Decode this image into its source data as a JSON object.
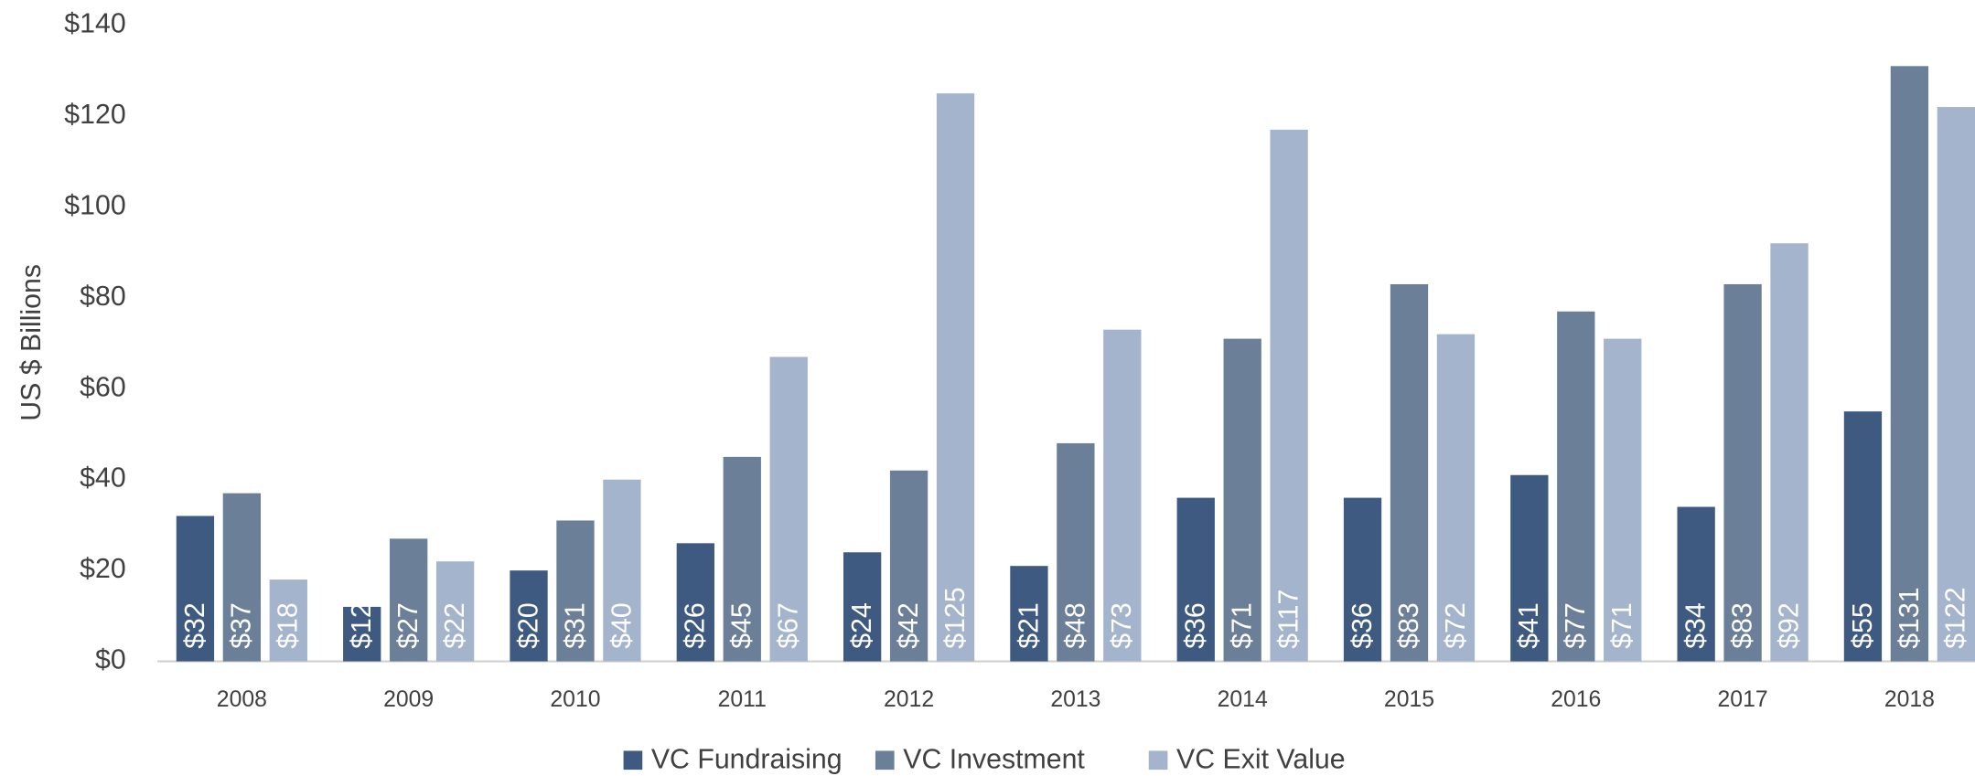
{
  "chart_data": {
    "type": "bar",
    "y_label": "US $ Billions",
    "categories": [
      "2008",
      "2009",
      "2010",
      "2011",
      "2012",
      "2013",
      "2014",
      "2015",
      "2016",
      "2017",
      "2018"
    ],
    "series": [
      {
        "name": "VC Fundraising",
        "color": "#3f5a80",
        "values": [
          32,
          12,
          20,
          26,
          24,
          21,
          36,
          36,
          41,
          34,
          55
        ],
        "value_labels": [
          "$32",
          "$12",
          "$20",
          "$26",
          "$24",
          "$21",
          "$36",
          "$36",
          "$41",
          "$34",
          "$55"
        ]
      },
      {
        "name": "VC Investment",
        "color": "#6b7f99",
        "values": [
          37,
          27,
          31,
          45,
          42,
          48,
          71,
          83,
          77,
          83,
          131
        ],
        "value_labels": [
          "$37",
          "$27",
          "$31",
          "$45",
          "$42",
          "$48",
          "$71",
          "$83",
          "$77",
          "$83",
          "$131"
        ]
      },
      {
        "name": "VC Exit Value",
        "color": "#a3b4cc",
        "values": [
          18,
          22,
          40,
          67,
          125,
          73,
          117,
          72,
          71,
          92,
          122
        ],
        "value_labels": [
          "$18",
          "$22",
          "$40",
          "$67",
          "$125",
          "$73",
          "$117",
          "$72",
          "$71",
          "$92",
          "$122"
        ]
      }
    ],
    "ylim": [
      0,
      140
    ],
    "yticks": [
      {
        "value": 0,
        "label": "$0"
      },
      {
        "value": 20,
        "label": "$20"
      },
      {
        "value": 40,
        "label": "$40"
      },
      {
        "value": 60,
        "label": "$60"
      },
      {
        "value": 80,
        "label": "$80"
      },
      {
        "value": 100,
        "label": "$100"
      },
      {
        "value": 120,
        "label": "$120"
      },
      {
        "value": 140,
        "label": "$140"
      }
    ],
    "grid": false,
    "legend": "bottom"
  }
}
